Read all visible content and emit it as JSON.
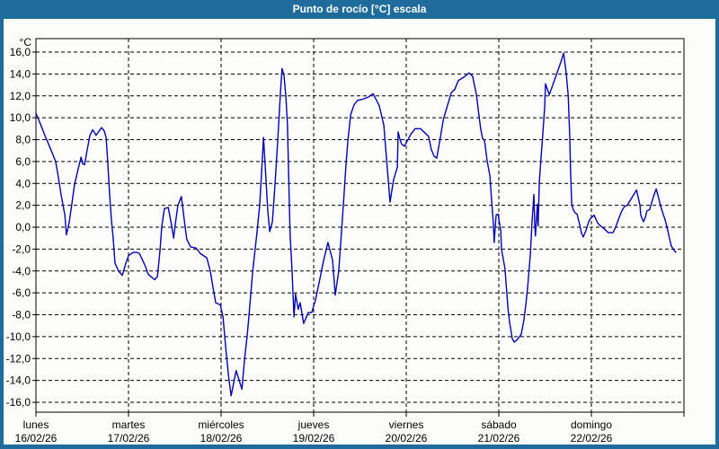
{
  "window": {
    "title": "Punto de rocío [°C] escala"
  },
  "colors": {
    "frame": "#1e6b9c",
    "titlebar_bg": "#1e6b9c",
    "title_text": "#ffffff",
    "chart_bg": "#fcfdfa",
    "plot_bg": "#fdfdfb",
    "grid": "#000000",
    "label": "#000000",
    "curve": "#0000b4"
  },
  "axes": {
    "y_unit": "°C",
    "y_ticks": [
      {
        "label": "16,0",
        "value": 16
      },
      {
        "label": "14,0",
        "value": 14
      },
      {
        "label": "12,0",
        "value": 12
      },
      {
        "label": "10,0",
        "value": 10
      },
      {
        "label": "8,0",
        "value": 8
      },
      {
        "label": "6,0",
        "value": 6
      },
      {
        "label": "4,0",
        "value": 4
      },
      {
        "label": "2,0",
        "value": 2
      },
      {
        "label": "0,0",
        "value": 0
      },
      {
        "label": "-2,0",
        "value": -2
      },
      {
        "label": "-4,0",
        "value": -4
      },
      {
        "label": "-6,0",
        "value": -6
      },
      {
        "label": "-8,0",
        "value": -8
      },
      {
        "label": "-10,0",
        "value": -10
      },
      {
        "label": "-12,0",
        "value": -12
      },
      {
        "label": "-14,0",
        "value": -14
      },
      {
        "label": "-16,0",
        "value": -16
      }
    ],
    "x_days": [
      {
        "name": "lunes",
        "date": "16/02/26"
      },
      {
        "name": "martes",
        "date": "17/02/26"
      },
      {
        "name": "miércoles",
        "date": "18/02/26"
      },
      {
        "name": "jueves",
        "date": "19/02/26"
      },
      {
        "name": "viernes",
        "date": "20/02/26"
      },
      {
        "name": "sábado",
        "date": "21/02/26"
      },
      {
        "name": "domingo",
        "date": "22/02/26"
      }
    ]
  },
  "chart_data": {
    "type": "line",
    "title": "Punto de rocío [°C] escala",
    "ylabel": "°C",
    "ylim": [
      -16,
      16
    ],
    "y_step": 2,
    "xlim_hours": [
      0,
      168
    ],
    "x_axis": "time in hours from lunes 16/02/26 00:00 to domingo 22/02/26 24:00",
    "grid": "dashed, horizontal every 2°C, vertical at each day boundary",
    "legend": "none",
    "series": [
      {
        "name": "Punto de rocío [°C]",
        "color": "#0000b4",
        "points_hours_degC": [
          [
            0,
            10.4
          ],
          [
            1.2,
            9.4
          ],
          [
            2.3,
            8.4
          ],
          [
            3.5,
            7.4
          ],
          [
            4.2,
            6.8
          ],
          [
            5.1,
            6.0
          ],
          [
            5.8,
            4.6
          ],
          [
            6.5,
            3.0
          ],
          [
            7.5,
            1.1
          ],
          [
            7.9,
            -0.7
          ],
          [
            8.6,
            0.4
          ],
          [
            9.3,
            2.1
          ],
          [
            10,
            3.9
          ],
          [
            11,
            5.4
          ],
          [
            11.7,
            6.4
          ],
          [
            12.1,
            5.8
          ],
          [
            12.6,
            5.7
          ],
          [
            13.3,
            7.1
          ],
          [
            14,
            8.4
          ],
          [
            14.7,
            8.9
          ],
          [
            15.6,
            8.4
          ],
          [
            17,
            9.1
          ],
          [
            17.7,
            8.8
          ],
          [
            18.2,
            8.2
          ],
          [
            18.6,
            6.0
          ],
          [
            19.1,
            3.0
          ],
          [
            19.6,
            0.5
          ],
          [
            20,
            -0.9
          ],
          [
            20.5,
            -3.3
          ],
          [
            21.4,
            -4.0
          ],
          [
            22.4,
            -4.4
          ],
          [
            23.3,
            -3.3
          ],
          [
            24,
            -2.6
          ],
          [
            25.2,
            -2.3
          ],
          [
            26.1,
            -2.3
          ],
          [
            26.8,
            -2.4
          ],
          [
            27.5,
            -2.9
          ],
          [
            28.4,
            -3.6
          ],
          [
            29.1,
            -4.3
          ],
          [
            30.1,
            -4.6
          ],
          [
            30.8,
            -4.8
          ],
          [
            31.5,
            -4.5
          ],
          [
            32.2,
            -2.0
          ],
          [
            32.6,
            0.0
          ],
          [
            33.3,
            1.7
          ],
          [
            34.3,
            1.8
          ],
          [
            35,
            0.5
          ],
          [
            35.7,
            -1.0
          ],
          [
            36.1,
            0.2
          ],
          [
            36.8,
            2.0
          ],
          [
            37.7,
            2.8
          ],
          [
            38.4,
            0.8
          ],
          [
            39.1,
            -1.1
          ],
          [
            40.1,
            -1.8
          ],
          [
            41.5,
            -1.9
          ],
          [
            42.6,
            -2.4
          ],
          [
            44.3,
            -2.8
          ],
          [
            45.2,
            -4.0
          ],
          [
            45.9,
            -5.5
          ],
          [
            46.6,
            -6.9
          ],
          [
            47.8,
            -7.1
          ],
          [
            48.5,
            -8.2
          ],
          [
            49.2,
            -11.0
          ],
          [
            49.9,
            -13.5
          ],
          [
            50.6,
            -15.4
          ],
          [
            51.9,
            -13.1
          ],
          [
            53.4,
            -14.8
          ],
          [
            54.1,
            -12.0
          ],
          [
            54.8,
            -9.8
          ],
          [
            55.2,
            -8.2
          ],
          [
            56.2,
            -4.0
          ],
          [
            57.3,
            -0.5
          ],
          [
            58,
            2.0
          ],
          [
            58.5,
            5.0
          ],
          [
            59,
            8.2
          ],
          [
            59.7,
            4.0
          ],
          [
            60.1,
            1.5
          ],
          [
            60.6,
            -0.4
          ],
          [
            61.3,
            0.5
          ],
          [
            62,
            4.0
          ],
          [
            62.7,
            8.0
          ],
          [
            63.4,
            12.4
          ],
          [
            63.8,
            14.5
          ],
          [
            64.3,
            13.9
          ],
          [
            64.8,
            11.9
          ],
          [
            65.2,
            9.4
          ],
          [
            65.5,
            5.0
          ],
          [
            65.7,
            2.0
          ],
          [
            65.9,
            -0.7
          ],
          [
            66.4,
            -4.0
          ],
          [
            66.9,
            -8.2
          ],
          [
            67.3,
            -6.1
          ],
          [
            68,
            -7.5
          ],
          [
            68.5,
            -6.9
          ],
          [
            69.4,
            -8.8
          ],
          [
            70.6,
            -7.8
          ],
          [
            71.5,
            -7.8
          ],
          [
            72.5,
            -6.6
          ],
          [
            73.4,
            -5.1
          ],
          [
            74.6,
            -3.0
          ],
          [
            75.7,
            -1.4
          ],
          [
            76.9,
            -3.0
          ],
          [
            77.6,
            -6.2
          ],
          [
            78.5,
            -4.0
          ],
          [
            79.2,
            -0.5
          ],
          [
            79.9,
            3.1
          ],
          [
            80.4,
            5.8
          ],
          [
            80.9,
            8.0
          ],
          [
            81.6,
            10.3
          ],
          [
            82.5,
            11.2
          ],
          [
            83.4,
            11.6
          ],
          [
            84.8,
            11.7
          ],
          [
            86.2,
            11.9
          ],
          [
            87.4,
            12.2
          ],
          [
            89,
            11.1
          ],
          [
            90.2,
            9.3
          ],
          [
            90.9,
            6.2
          ],
          [
            91.8,
            2.3
          ],
          [
            92.7,
            4.3
          ],
          [
            93.7,
            5.5
          ],
          [
            93.9,
            8.7
          ],
          [
            94.4,
            8.0
          ],
          [
            94.8,
            7.6
          ],
          [
            95.5,
            7.4
          ],
          [
            96,
            7.7
          ],
          [
            97.2,
            8.5
          ],
          [
            98.3,
            9.0
          ],
          [
            99.7,
            9.0
          ],
          [
            100.9,
            8.6
          ],
          [
            101.8,
            8.3
          ],
          [
            102.5,
            7.1
          ],
          [
            103.2,
            6.5
          ],
          [
            103.9,
            6.3
          ],
          [
            104.9,
            8.3
          ],
          [
            105.6,
            9.8
          ],
          [
            106.5,
            10.9
          ],
          [
            107.7,
            12.3
          ],
          [
            108.6,
            12.6
          ],
          [
            109.5,
            13.4
          ],
          [
            110.9,
            13.7
          ],
          [
            112.3,
            14.1
          ],
          [
            113.2,
            13.8
          ],
          [
            114.2,
            12.1
          ],
          [
            114.9,
            10.1
          ],
          [
            115.3,
            9.0
          ],
          [
            115.8,
            8.1
          ],
          [
            116.3,
            7.9
          ],
          [
            117,
            6.0
          ],
          [
            117.7,
            4.7
          ],
          [
            118.1,
            2.6
          ],
          [
            118.6,
            0.3
          ],
          [
            118.8,
            -1.4
          ],
          [
            119.3,
            1.1
          ],
          [
            119.8,
            1.2
          ],
          [
            120.5,
            -0.3
          ],
          [
            120.7,
            -2.0
          ],
          [
            121.6,
            -3.8
          ],
          [
            122.4,
            -7.5
          ],
          [
            122.8,
            -8.7
          ],
          [
            123.5,
            -10.2
          ],
          [
            124,
            -10.5
          ],
          [
            124.7,
            -10.3
          ],
          [
            125.8,
            -9.8
          ],
          [
            126.5,
            -8.5
          ],
          [
            127,
            -7.1
          ],
          [
            127.5,
            -5.4
          ],
          [
            128.2,
            -2.4
          ],
          [
            128.6,
            0.4
          ],
          [
            129.1,
            3.0
          ],
          [
            129.3,
            0.4
          ],
          [
            129.5,
            -0.8
          ],
          [
            130,
            2.1
          ],
          [
            130.2,
            0.1
          ],
          [
            130.5,
            4.1
          ],
          [
            130.9,
            6.1
          ],
          [
            131.4,
            8.5
          ],
          [
            131.9,
            11.0
          ],
          [
            132.1,
            13.1
          ],
          [
            133.1,
            12.1
          ],
          [
            134,
            13.0
          ],
          [
            135.1,
            14.1
          ],
          [
            136.1,
            15.1
          ],
          [
            136.8,
            15.9
          ],
          [
            137.5,
            14.0
          ],
          [
            138,
            12.0
          ],
          [
            138.2,
            10.1
          ],
          [
            138.4,
            8.2
          ],
          [
            138.6,
            5.2
          ],
          [
            138.9,
            2.1
          ],
          [
            139.3,
            1.6
          ],
          [
            139.8,
            1.3
          ],
          [
            140.3,
            1.2
          ],
          [
            140.5,
            0.9
          ],
          [
            141,
            0.2
          ],
          [
            141.4,
            -0.5
          ],
          [
            141.9,
            -0.9
          ],
          [
            142.6,
            -0.3
          ],
          [
            143.3,
            0.5
          ],
          [
            143.8,
            0.8
          ],
          [
            144.7,
            1.1
          ],
          [
            145.6,
            0.4
          ],
          [
            146.1,
            0.2
          ],
          [
            147.5,
            -0.2
          ],
          [
            148.4,
            -0.5
          ],
          [
            149.6,
            -0.5
          ],
          [
            150.3,
            0.0
          ],
          [
            151,
            0.7
          ],
          [
            151.9,
            1.5
          ],
          [
            152.6,
            1.9
          ],
          [
            153.3,
            2.0
          ],
          [
            154.5,
            2.7
          ],
          [
            155.7,
            3.4
          ],
          [
            156.6,
            2.0
          ],
          [
            156.8,
            1.1
          ],
          [
            157.5,
            0.5
          ],
          [
            158,
            0.9
          ],
          [
            158.4,
            1.5
          ],
          [
            159.1,
            1.6
          ],
          [
            160.1,
            2.8
          ],
          [
            160.8,
            3.5
          ],
          [
            161.5,
            2.6
          ],
          [
            161.9,
            2.0
          ],
          [
            162.6,
            1.2
          ],
          [
            163.1,
            0.7
          ],
          [
            163.8,
            -0.3
          ],
          [
            164.3,
            -1.1
          ],
          [
            164.7,
            -1.7
          ],
          [
            165.2,
            -2.0
          ],
          [
            165.9,
            -2.3
          ]
        ]
      }
    ]
  }
}
